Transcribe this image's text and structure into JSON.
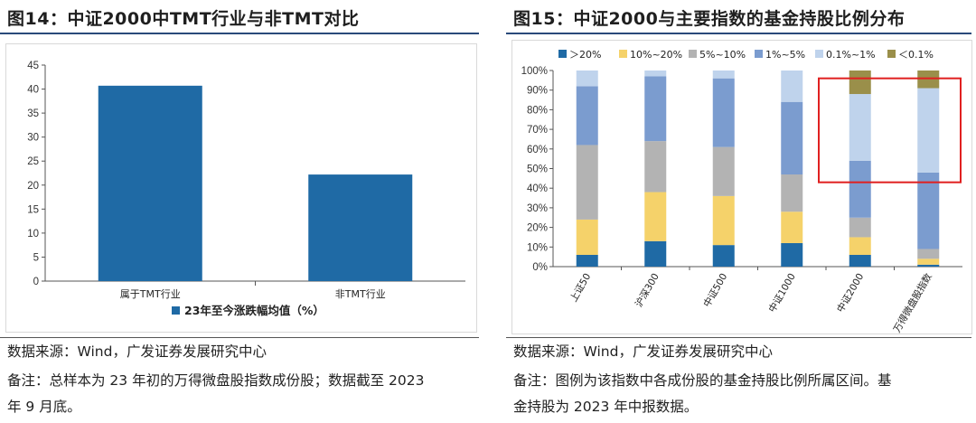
{
  "left": {
    "title": "图14：中证2000中TMT行业与非TMT对比",
    "source": "数据来源：Wind，广发证券发展研究中心",
    "note_line1": "备注：总样本为 23 年初的万得微盘股指数成份股；数据截至 2023",
    "note_line2": "年 9 月底。"
  },
  "right": {
    "title": "图15：中证2000与主要指数的基金持股比例分布",
    "source": "数据来源：Wind，广发证券发展研究中心",
    "note_line1": "备注：图例为该指数中各成份股的基金持股比例所属区间。基",
    "note_line2": "金持股为 2023 年中报数据。"
  },
  "chart_data": [
    {
      "type": "bar",
      "title": "图14：中证2000中TMT行业与非TMT对比",
      "categories": [
        "属于TMT行业",
        "非TMT行业"
      ],
      "series": [
        {
          "name": "23年至今涨跌幅均值（%）",
          "values": [
            40.7,
            22.2
          ]
        }
      ],
      "ylim": [
        0,
        45
      ],
      "yticks": [
        0,
        5,
        10,
        15,
        20,
        25,
        30,
        35,
        40,
        45
      ],
      "legend_position": "bottom",
      "grid": false,
      "colors": [
        "#1f6aa5"
      ]
    },
    {
      "type": "bar",
      "stacked": true,
      "title": "图15：中证2000与主要指数的基金持股比例分布",
      "categories": [
        "上证50",
        "沪深300",
        "中证500",
        "中证1000",
        "中证2000",
        "万得微盘股指数"
      ],
      "series": [
        {
          "name": "＞20%",
          "values": [
            6,
            13,
            11,
            12,
            6,
            1
          ],
          "color": "#1f6aa5"
        },
        {
          "name": "10%~20%",
          "values": [
            18,
            25,
            25,
            16,
            9,
            3
          ],
          "color": "#f5d26a"
        },
        {
          "name": "5%~10%",
          "values": [
            38,
            26,
            25,
            19,
            10,
            5
          ],
          "color": "#b3b3b3"
        },
        {
          "name": "1%~5%",
          "values": [
            30,
            33,
            35,
            37,
            29,
            39
          ],
          "color": "#7b9ccf"
        },
        {
          "name": "0.1%~1%",
          "values": [
            8,
            3,
            4,
            16,
            34,
            43
          ],
          "color": "#bfd3ec"
        },
        {
          "name": "＜0.1%",
          "values": [
            0,
            0,
            0,
            0,
            12,
            9
          ],
          "color": "#9a8f4a"
        }
      ],
      "ylim": [
        0,
        100
      ],
      "yticks": [
        "0%",
        "10%",
        "20%",
        "30%",
        "40%",
        "50%",
        "60%",
        "70%",
        "80%",
        "90%",
        "100%"
      ],
      "legend_position": "top",
      "grid": false,
      "annotation": "red box highlighting 中证2000 and 万得微盘股指数 from about 43% to 96%",
      "annotation_color": "#e02020"
    }
  ]
}
